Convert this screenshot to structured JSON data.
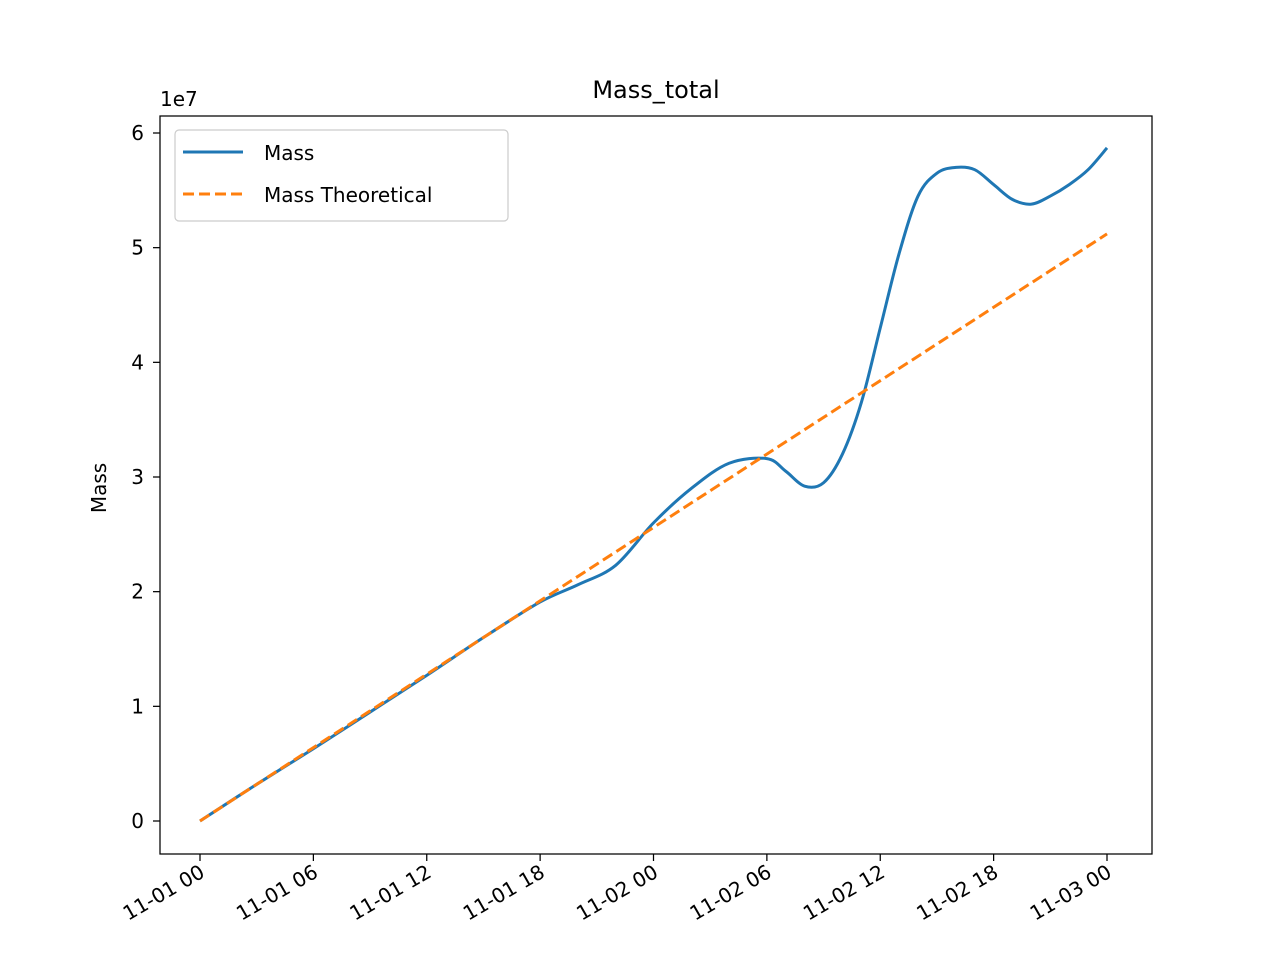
{
  "chart_data": {
    "type": "line",
    "title": "Mass_total",
    "xlabel": "",
    "ylabel": "Mass",
    "y_offset_label": "1e7",
    "x_tick_labels": [
      "11-01 00",
      "11-01 06",
      "11-01 12",
      "11-01 18",
      "11-02 00",
      "11-02 06",
      "11-02 12",
      "11-02 18",
      "11-03 00"
    ],
    "y_tick_labels": [
      "0",
      "1",
      "2",
      "3",
      "4",
      "5",
      "6"
    ],
    "x_range": [
      "2023-11-01 00:00",
      "2023-11-03 00:00"
    ],
    "y_range_scaled": [
      -0.3,
      6.15
    ],
    "legend": {
      "placement": "top-left"
    },
    "grid": false,
    "series": [
      {
        "name": "Mass",
        "color": "#1f77b4",
        "style": "solid",
        "x": [
          "2023-11-01 00:00",
          "2023-11-01 03:00",
          "2023-11-01 06:00",
          "2023-11-01 09:00",
          "2023-11-01 12:00",
          "2023-11-01 15:00",
          "2023-11-01 18:00",
          "2023-11-01 20:00",
          "2023-11-01 22:00",
          "2023-11-02 00:00",
          "2023-11-02 02:00",
          "2023-11-02 04:00",
          "2023-11-02 06:00",
          "2023-11-02 07:00",
          "2023-11-02 08:00",
          "2023-11-02 09:00",
          "2023-11-02 10:00",
          "2023-11-02 11:00",
          "2023-11-02 12:00",
          "2023-11-02 13:00",
          "2023-11-02 14:00",
          "2023-11-02 15:00",
          "2023-11-02 16:00",
          "2023-11-02 17:00",
          "2023-11-02 18:00",
          "2023-11-02 19:00",
          "2023-11-02 20:00",
          "2023-11-02 21:00",
          "2023-11-02 22:00",
          "2023-11-02 23:00",
          "2023-11-03 00:00"
        ],
        "y": [
          0.0,
          3200000.0,
          6300000.0,
          9500000.0,
          12700000.0,
          16000000.0,
          19100000.0,
          20600000.0,
          22300000.0,
          26000000.0,
          29000000.0,
          31200000.0,
          31600000.0,
          30500000.0,
          29200000.0,
          29500000.0,
          32000000.0,
          36500000.0,
          43000000.0,
          49500000.0,
          54500000.0,
          56500000.0,
          57000000.0,
          56800000.0,
          55500000.0,
          54200000.0,
          53800000.0,
          54500000.0,
          55500000.0,
          56800000.0,
          58700000.0
        ]
      },
      {
        "name": "Mass Theoretical",
        "color": "#ff7f0e",
        "style": "dashed",
        "x": [
          "2023-11-01 00:00",
          "2023-11-03 00:00"
        ],
        "y": [
          0.0,
          51200000.0
        ]
      }
    ]
  }
}
